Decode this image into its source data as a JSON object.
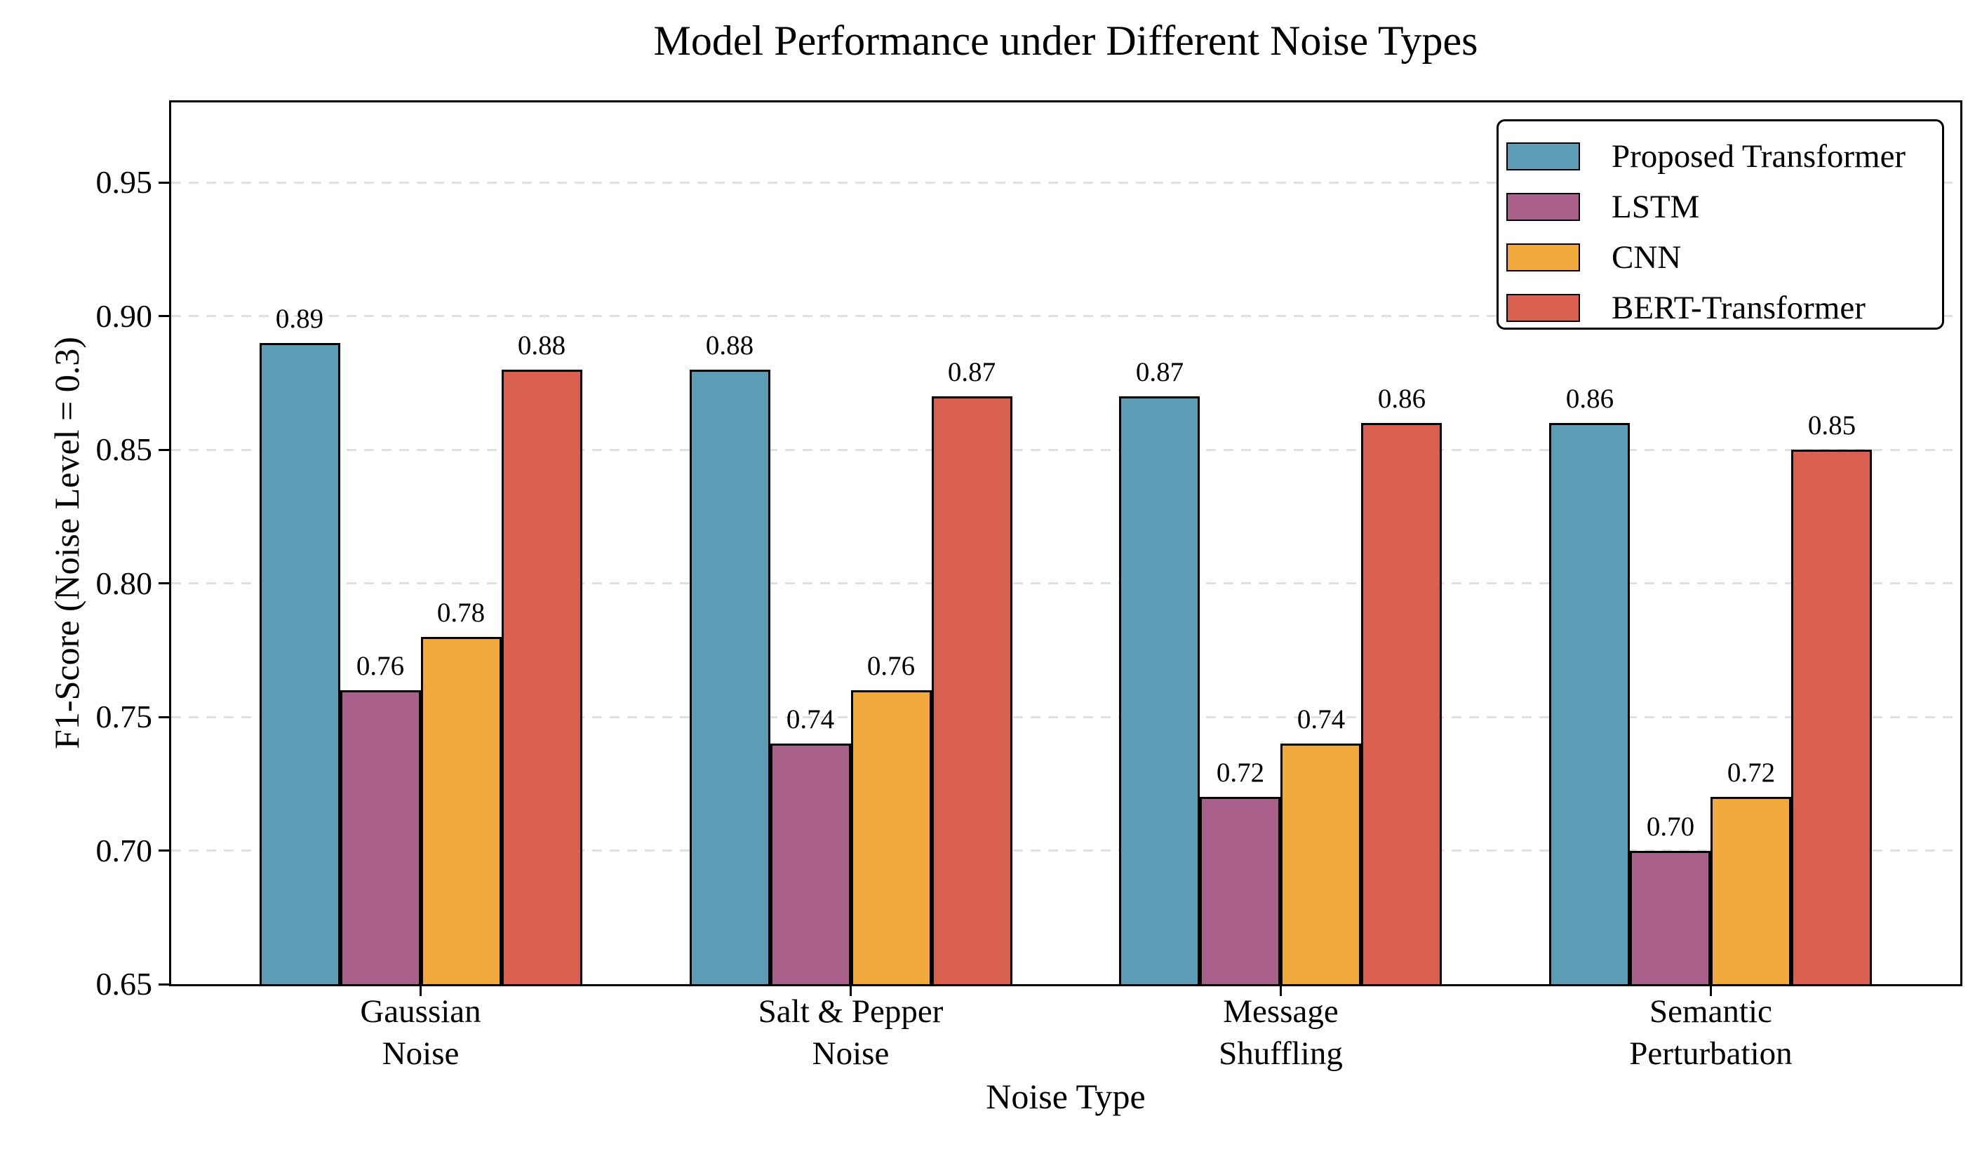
{
  "chart_data": {
    "type": "bar",
    "title": "Model Performance under Different Noise Types",
    "xlabel": "Noise Type",
    "ylabel": "F1-Score (Noise Level = 0.3)",
    "categories": [
      "Gaussian\nNoise",
      "Salt & Pepper\nNoise",
      "Message\nShuffling",
      "Semantic\nPerturbation"
    ],
    "series": [
      {
        "name": "Proposed Transformer",
        "color": "#5C9DB5",
        "values": [
          0.89,
          0.88,
          0.87,
          0.86
        ]
      },
      {
        "name": "LSTM",
        "color": "#A9608A",
        "values": [
          0.76,
          0.74,
          0.72,
          0.7
        ]
      },
      {
        "name": "CNN",
        "color": "#F1A83C",
        "values": [
          0.78,
          0.76,
          0.74,
          0.72
        ]
      },
      {
        "name": "BERT-Transformer",
        "color": "#D9604F",
        "values": [
          0.88,
          0.87,
          0.86,
          0.85
        ]
      }
    ],
    "ylim": [
      0.65,
      0.98
    ],
    "yticks": [
      0.65,
      0.7,
      0.75,
      0.8,
      0.85,
      0.9,
      0.95
    ],
    "value_label_decimals": 2,
    "grid": "horizontal-dashed",
    "legend_position": "upper-right",
    "colors": {
      "background": "#FFFFFF",
      "grid": "#E0E0E0",
      "axis": "#000000",
      "text": "#000000",
      "bar_edge": "#000000",
      "legend_border": "#000000",
      "legend_background": "#FFFFFF"
    }
  }
}
